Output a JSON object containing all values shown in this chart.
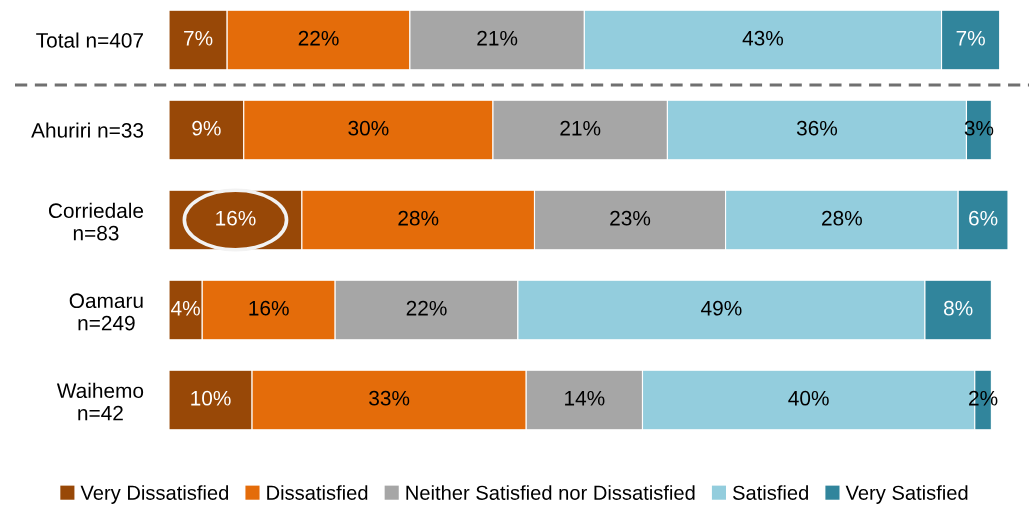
{
  "chart_data": {
    "type": "bar",
    "orientation": "horizontal",
    "stacked": true,
    "categories": [
      "Total n=407",
      "Ahuriri n=33",
      "Corriedale\nn=83",
      "Oamaru\nn=249",
      "Waihemo\nn=42"
    ],
    "series": [
      {
        "name": "Very Dissatisfied",
        "color": "#984807",
        "values": [
          7,
          9,
          16,
          4,
          10
        ],
        "value_labels": [
          "7%",
          "9%",
          "16%",
          "4%",
          "10%"
        ]
      },
      {
        "name": "Dissatisfied",
        "color": "#e46c0a",
        "values": [
          22,
          30,
          28,
          16,
          33
        ],
        "value_labels": [
          "22%",
          "30%",
          "28%",
          "16%",
          "33%"
        ]
      },
      {
        "name": "Neither Satisfied nor Dissatisfied",
        "color": "#a6a6a6",
        "values": [
          21,
          21,
          23,
          22,
          14
        ],
        "value_labels": [
          "21%",
          "21%",
          "23%",
          "22%",
          "14%"
        ]
      },
      {
        "name": "Satisfied",
        "color": "#93cddd",
        "values": [
          43,
          36,
          28,
          49,
          40
        ],
        "value_labels": [
          "43%",
          "36%",
          "28%",
          "49%",
          "40%"
        ]
      },
      {
        "name": "Very Satisfied",
        "color": "#31859c",
        "values": [
          7,
          3,
          6,
          8,
          2
        ],
        "value_labels": [
          "7%",
          "3%",
          "6%",
          "8%",
          "2%"
        ]
      }
    ],
    "legend": "bottom",
    "tick_labels": "y"
  }
}
